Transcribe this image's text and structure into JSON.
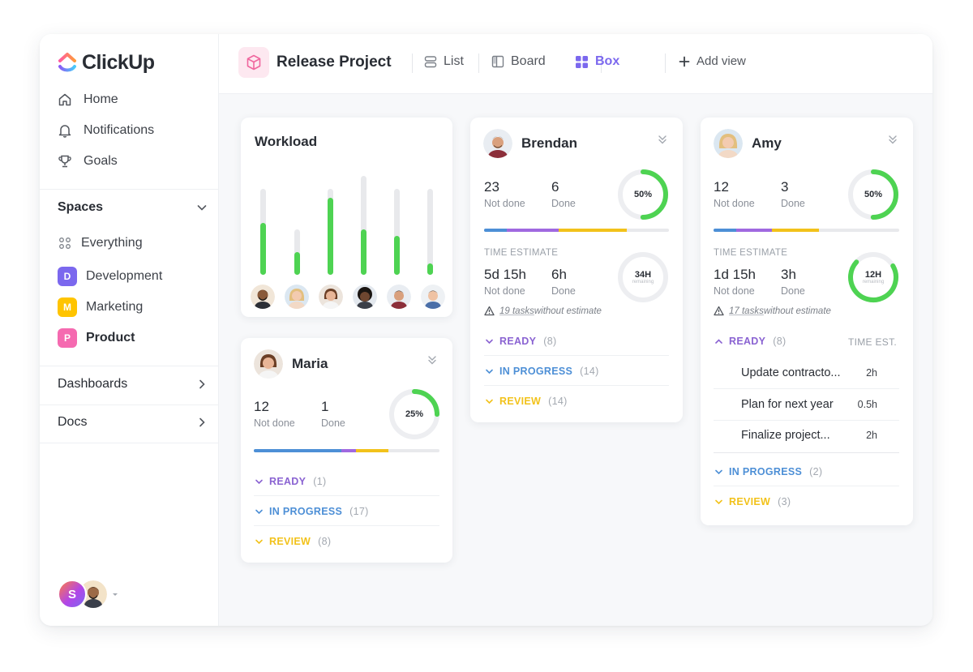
{
  "app": {
    "logo_text": "ClickUp",
    "nav": [
      {
        "label": "Home",
        "icon": "home-icon"
      },
      {
        "label": "Notifications",
        "icon": "bell-icon"
      },
      {
        "label": "Goals",
        "icon": "trophy-icon"
      }
    ],
    "spaces_header": "Spaces",
    "spaces": [
      {
        "label": "Everything",
        "icon": "grid-dots-icon"
      },
      {
        "label": "Development",
        "badge": "D",
        "color": "#7b68ee"
      },
      {
        "label": "Marketing",
        "badge": "M",
        "color": "#ffc400"
      },
      {
        "label": "Product",
        "badge": "P",
        "color": "#f56ab0"
      }
    ],
    "sections": [
      {
        "label": "Dashboards"
      },
      {
        "label": "Docs"
      }
    ],
    "user_initial": "S"
  },
  "header": {
    "project_title": "Release Project",
    "views": [
      {
        "label": "List",
        "icon": "list-icon"
      },
      {
        "label": "Board",
        "icon": "board-icon"
      },
      {
        "label": "Box",
        "icon": "box-icon",
        "active": true
      },
      {
        "label": "Add view",
        "icon": "plus-icon"
      }
    ]
  },
  "colors": {
    "accent": "#7b68ee",
    "green": "#4ed352",
    "ready": "#8a63d2",
    "in_progress": "#4d8fd6",
    "review": "#f2c21b"
  },
  "workload": {
    "title": "Workload",
    "bars": [
      {
        "fill": 0.6
      },
      {
        "fill": 0.5
      },
      {
        "fill": 0.9
      },
      {
        "fill": 0.46
      },
      {
        "fill": 0.45
      },
      {
        "fill": 0.13
      }
    ]
  },
  "maria": {
    "name": "Maria",
    "not_done": "12",
    "not_done_label": "Not done",
    "done": "1",
    "done_label": "Done",
    "percent": "25%",
    "percent_value": 0.25,
    "statuses": [
      {
        "label": "READY",
        "count": "(1)"
      },
      {
        "label": "IN PROGRESS",
        "count": "(17)"
      },
      {
        "label": "REVIEW",
        "count": "(8)"
      }
    ]
  },
  "brendan": {
    "name": "Brendan",
    "not_done": "23",
    "not_done_label": "Not done",
    "done": "6",
    "done_label": "Done",
    "percent": "50%",
    "percent_value": 0.5,
    "time_label": "TIME ESTIMATE",
    "time_not_done": "5d 15h",
    "time_done": "6h",
    "hours": "34H",
    "hours_sub": "remaining",
    "warn_link": "19 tasks",
    "warn_rest": " without estimate",
    "statuses": [
      {
        "label": "READY",
        "count": "(8)"
      },
      {
        "label": "IN PROGRESS",
        "count": "(14)"
      },
      {
        "label": "REVIEW",
        "count": "(14)"
      }
    ]
  },
  "amy": {
    "name": "Amy",
    "not_done": "12",
    "not_done_label": "Not done",
    "done": "3",
    "done_label": "Done",
    "percent": "50%",
    "percent_value": 0.5,
    "time_label": "TIME ESTIMATE",
    "time_not_done": "1d 15h",
    "time_done": "3h",
    "hours": "12H",
    "hours_sub": "remaining",
    "warn_link": "17 tasks",
    "warn_rest": " without estimate",
    "ready_label": "READY",
    "ready_count": "(8)",
    "time_est_label": "TIME EST.",
    "tasks": [
      {
        "name": "Update contracto...",
        "est": "2h"
      },
      {
        "name": "Plan for next year",
        "est": "0.5h"
      },
      {
        "name": "Finalize project...",
        "est": "2h"
      }
    ],
    "statuses": [
      {
        "label": "IN PROGRESS",
        "count": "(2)"
      },
      {
        "label": "REVIEW",
        "count": "(3)"
      }
    ]
  }
}
